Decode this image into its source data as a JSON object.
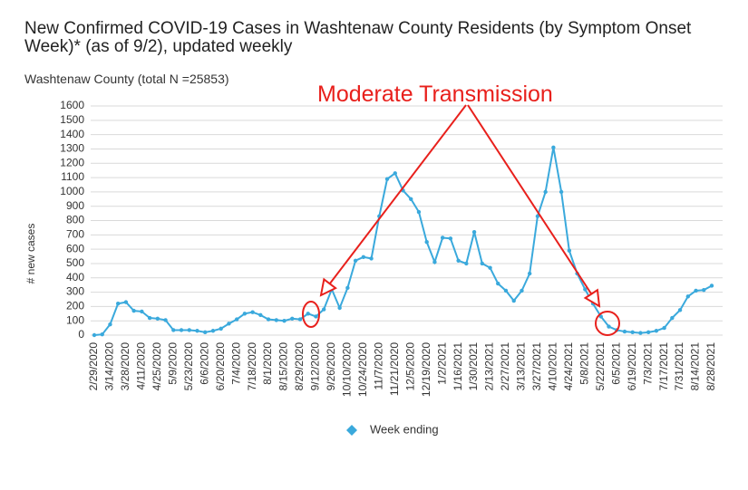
{
  "chart_data": {
    "type": "line",
    "title": "New Confirmed COVID-19 Cases in Washtenaw County Residents (by Symptom Onset Week)* (as of 9/2), updated weekly",
    "subtitle": "Washtenaw County (total N =25853)",
    "y_label": "# new cases",
    "annotation": "Moderate Transmission",
    "categories": [
      "2/29/2020",
      null,
      "3/14/2020",
      null,
      "3/28/2020",
      null,
      "4/11/2020",
      null,
      "4/25/2020",
      null,
      "5/9/2020",
      null,
      "5/23/2020",
      null,
      "6/6/2020",
      null,
      "6/20/2020",
      null,
      "7/4/2020",
      null,
      "7/18/2020",
      null,
      "8/1/2020",
      null,
      "8/15/2020",
      null,
      "8/29/2020",
      null,
      "9/12/2020",
      null,
      "9/26/2020",
      null,
      "10/10/2020",
      null,
      "10/24/2020",
      null,
      "11/7/2020",
      null,
      "11/21/2020",
      null,
      "12/5/2020",
      null,
      "12/19/2020",
      null,
      "1/2/2021",
      null,
      "1/16/2021",
      null,
      "1/30/2021",
      null,
      "2/13/2021",
      null,
      "2/27/2021",
      null,
      "3/13/2021",
      null,
      "3/27/2021",
      null,
      "4/10/2021",
      null,
      "4/24/2021",
      null,
      "5/8/2021",
      null,
      "5/22/2021",
      null,
      "6/5/2021",
      null,
      "6/19/2021",
      null,
      "7/3/2021",
      null,
      "7/17/2021",
      null,
      "7/31/2021",
      null,
      "8/14/2021",
      null,
      "8/28/2021"
    ],
    "series": [
      {
        "name": "Week ending",
        "color": "#3aa9dc",
        "values": [
          0,
          5,
          75,
          220,
          230,
          170,
          165,
          120,
          115,
          105,
          35,
          35,
          35,
          30,
          20,
          30,
          45,
          80,
          110,
          150,
          160,
          140,
          110,
          105,
          100,
          115,
          110,
          150,
          130,
          180,
          320,
          190,
          330,
          520,
          545,
          535,
          830,
          1090,
          1130,
          1010,
          950,
          860,
          650,
          510,
          680,
          675,
          520,
          500,
          720,
          500,
          470,
          360,
          310,
          240,
          310,
          430,
          830,
          1000,
          1310,
          1000,
          590,
          430,
          320,
          220,
          130,
          60,
          35,
          25,
          20,
          15,
          20,
          30,
          50,
          120,
          175,
          270,
          310,
          315,
          345
        ]
      }
    ],
    "ylim": [
      0,
      1600
    ],
    "yticks": [
      0,
      100,
      200,
      300,
      400,
      500,
      600,
      700,
      800,
      900,
      1000,
      1100,
      1200,
      1300,
      1400,
      1500,
      1600
    ],
    "grid": true,
    "legend": "bottom"
  }
}
